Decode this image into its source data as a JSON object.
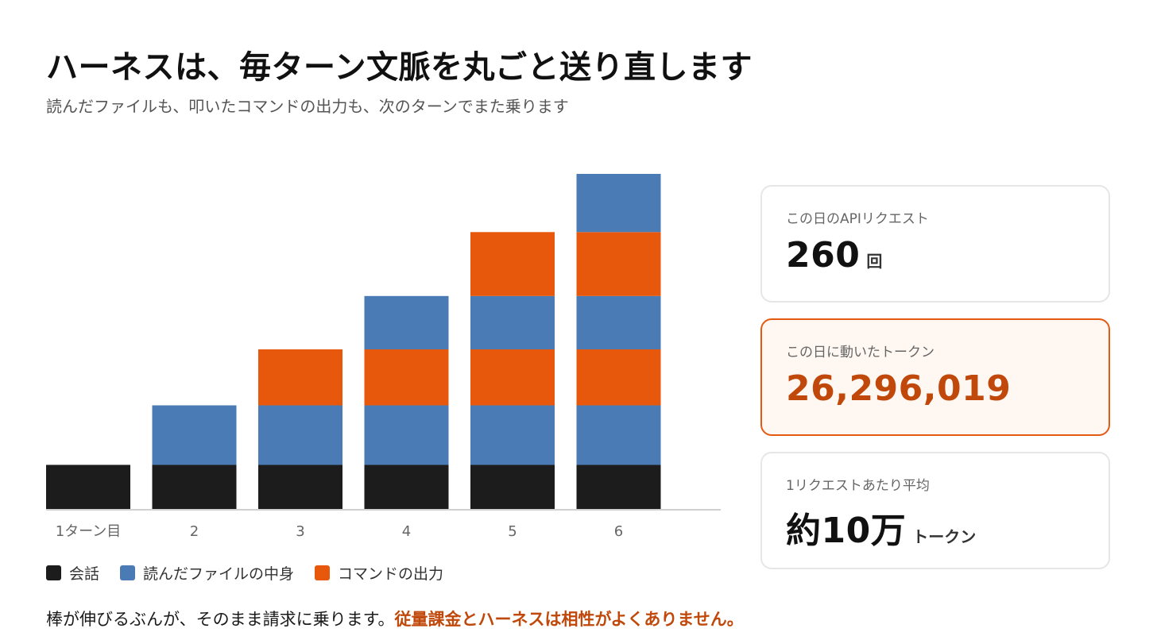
{
  "header": {
    "title": "ハーネスは、毎ターン文脈を丸ごと送り直します",
    "subtitle": "読んだファイルも、叩いたコマンドの出力も、次のターンでまた乗ります"
  },
  "chart_data": {
    "type": "bar",
    "stacked": true,
    "categories": [
      "1ターン目",
      "2",
      "3",
      "4",
      "5",
      "6"
    ],
    "segments": [
      [
        {
          "series": "会話",
          "value": 1.0
        }
      ],
      [
        {
          "series": "会話",
          "value": 1.0
        },
        {
          "series": "読んだファイルの中身",
          "value": 1.35
        }
      ],
      [
        {
          "series": "会話",
          "value": 1.0
        },
        {
          "series": "読んだファイルの中身",
          "value": 1.35
        },
        {
          "series": "コマンドの出力",
          "value": 1.27
        }
      ],
      [
        {
          "series": "会話",
          "value": 1.0
        },
        {
          "series": "読んだファイルの中身",
          "value": 1.35
        },
        {
          "series": "コマンドの出力",
          "value": 1.27
        },
        {
          "series": "読んだファイルの中身",
          "value": 1.21
        }
      ],
      [
        {
          "series": "会話",
          "value": 1.0
        },
        {
          "series": "読んだファイルの中身",
          "value": 1.35
        },
        {
          "series": "コマンドの出力",
          "value": 1.27
        },
        {
          "series": "読んだファイルの中身",
          "value": 1.21
        },
        {
          "series": "コマンドの出力",
          "value": 1.45
        }
      ],
      [
        {
          "series": "会話",
          "value": 1.0
        },
        {
          "series": "読んだファイルの中身",
          "value": 1.35
        },
        {
          "series": "コマンドの出力",
          "value": 1.27
        },
        {
          "series": "読んだファイルの中身",
          "value": 1.21
        },
        {
          "series": "コマンドの出力",
          "value": 1.45
        },
        {
          "series": "読んだファイルの中身",
          "value": 1.32
        }
      ]
    ],
    "ylim": [
      0,
      7.6
    ],
    "grid": false,
    "legend_position": "bottom-left",
    "colors": {
      "会話": "#1c1c1c",
      "読んだファイルの中身": "#4a7bb5",
      "コマンドの出力": "#e8580c"
    },
    "axis_color": "#d0d0d0",
    "tick_color": "#666666"
  },
  "legend": {
    "items": [
      {
        "label": "会話",
        "color": "#1c1c1c"
      },
      {
        "label": "読んだファイルの中身",
        "color": "#4a7bb5"
      },
      {
        "label": "コマンドの出力",
        "color": "#e8580c"
      }
    ]
  },
  "footer": {
    "text": "棒が伸びるぶんが、そのまま請求に乗ります。",
    "emphasis": "従量課金とハーネスは相性がよくありません。"
  },
  "cards": [
    {
      "label": "この日のAPIリクエスト",
      "value": "260",
      "unit": "回"
    },
    {
      "label": "この日に動いたトークン",
      "value": "26,296,019",
      "unit": ""
    },
    {
      "label": "1リクエストあたり平均",
      "value": "約10万",
      "unit": "トークン"
    }
  ],
  "colors": {
    "accent": "#e45a12",
    "accent_text": "#c0480b"
  }
}
